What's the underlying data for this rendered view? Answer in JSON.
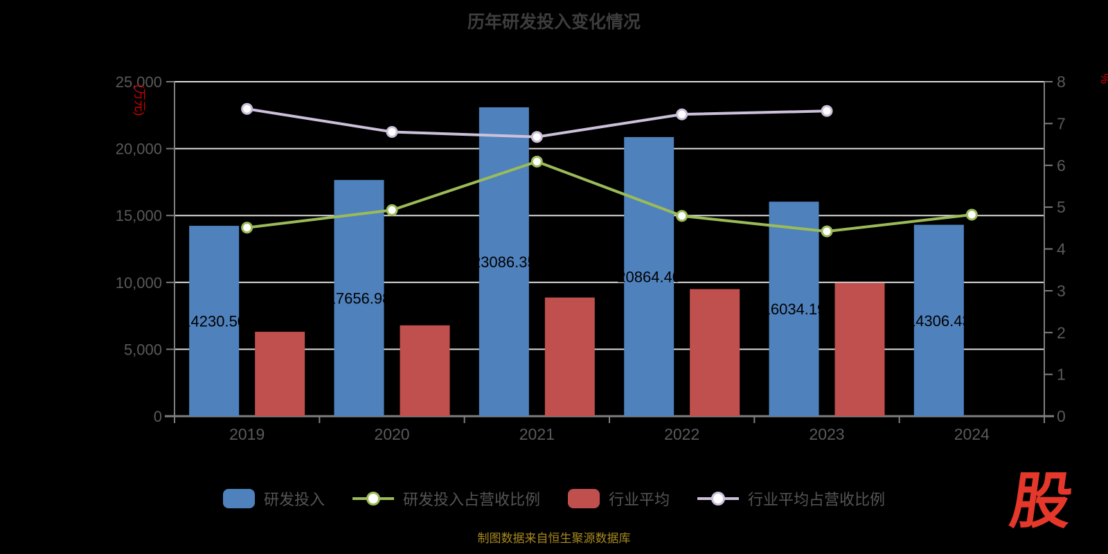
{
  "page": {
    "title": "历年研发投入变化情况",
    "source_note": "制图数据来自恒生聚源数据库",
    "logo_text": "股"
  },
  "chart_data": {
    "type": "bar+line combo",
    "title": "历年研发投入变化情况",
    "categories": [
      "2019",
      "2020",
      "2021",
      "2022",
      "2023",
      "2024"
    ],
    "left_axis": {
      "unit": "(万元)",
      "min": 0,
      "max": 25000,
      "step": 5000,
      "tick_labels": [
        "0",
        "5,000",
        "10,000",
        "15,000",
        "20,000",
        "25,000"
      ]
    },
    "right_axis": {
      "unit": "%",
      "min": 0,
      "max": 8,
      "step": 1,
      "tick_labels": [
        "0",
        "1",
        "2",
        "3",
        "4",
        "5",
        "6",
        "7",
        "8"
      ]
    },
    "grid": "horizontal lines at left-axis ticks",
    "legend_position": "bottom",
    "series": [
      {
        "id": "rd-investment",
        "name": "研发投入",
        "type": "bar",
        "axis": "left",
        "color": "#4f81bd",
        "values": [
          14230.5,
          17656.98,
          23086.35,
          20864.4,
          16034.19,
          14306.43
        ],
        "data_labels": [
          "14230.50",
          "17656.98",
          "23086.35",
          "20864.40",
          "16034.19",
          "14306.43"
        ],
        "data_label_color": "#000000"
      },
      {
        "id": "industry-average",
        "name": "行业平均",
        "type": "bar",
        "axis": "left",
        "color": "#c0504d",
        "values": [
          6310,
          6790,
          8870,
          9500,
          9965,
          null
        ]
      },
      {
        "id": "rd-revenue-ratio",
        "name": "研发投入占营收比例",
        "type": "line",
        "axis": "right",
        "color": "#9bbb59",
        "marker": "white-circle",
        "values": [
          4.51,
          4.93,
          6.09,
          4.79,
          4.42,
          4.82
        ]
      },
      {
        "id": "industry-revenue-ratio",
        "name": "行业平均占营收比例",
        "type": "line",
        "axis": "right",
        "color": "#ccc0da",
        "marker": "white-circle",
        "values": [
          7.35,
          6.8,
          6.68,
          7.22,
          7.3,
          null
        ]
      }
    ]
  }
}
